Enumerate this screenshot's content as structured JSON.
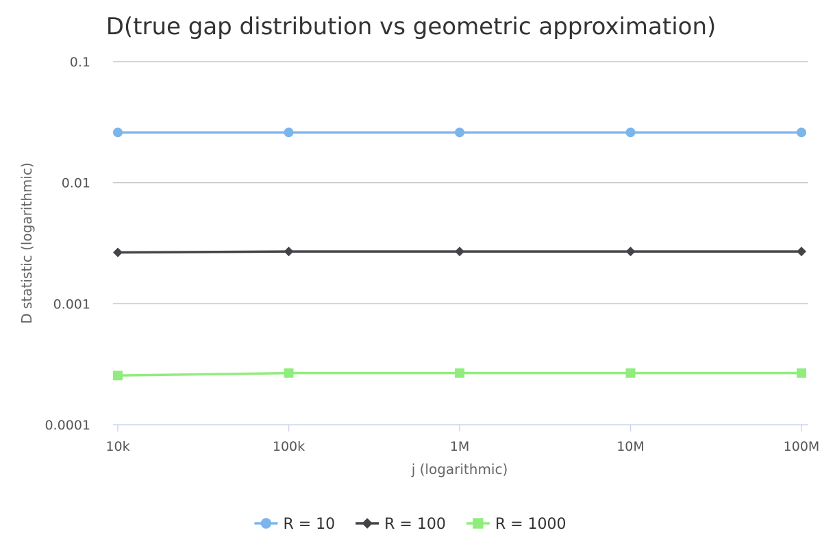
{
  "chart_data": {
    "type": "line",
    "title": "D(true gap distribution vs geometric approximation)",
    "xlabel": "j (logarithmic)",
    "ylabel": "D statistic (logarithmic)",
    "x_scale": "log",
    "y_scale": "log",
    "x": [
      10000,
      100000,
      1000000,
      10000000,
      100000000
    ],
    "x_tick_labels": [
      "10k",
      "100k",
      "1M",
      "10M",
      "100M"
    ],
    "y_ticks": [
      0.0001,
      0.001,
      0.01,
      0.1
    ],
    "y_tick_labels": [
      "0.0001",
      "0.001",
      "0.01",
      "0.1"
    ],
    "ylim": [
      0.0001,
      0.1
    ],
    "grid": true,
    "legend_position": "bottom-center",
    "series": [
      {
        "name": "R = 10",
        "color": "#7cb5ec",
        "marker": "circle",
        "values": [
          0.026,
          0.026,
          0.026,
          0.026,
          0.026
        ]
      },
      {
        "name": "R = 100",
        "color": "#434348",
        "marker": "diamond",
        "values": [
          0.00265,
          0.0027,
          0.0027,
          0.0027,
          0.0027
        ]
      },
      {
        "name": "R = 1000",
        "color": "#90ed7d",
        "marker": "square",
        "values": [
          0.000255,
          0.000267,
          0.000267,
          0.000267,
          0.000267
        ]
      }
    ]
  }
}
